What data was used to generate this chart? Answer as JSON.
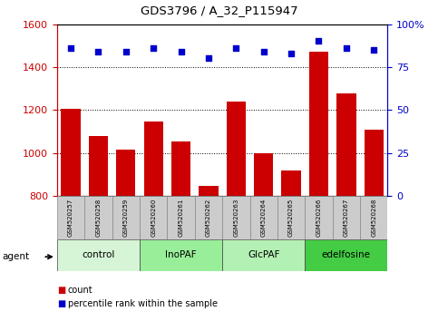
{
  "title": "GDS3796 / A_32_P115947",
  "samples": [
    "GSM520257",
    "GSM520258",
    "GSM520259",
    "GSM520260",
    "GSM520261",
    "GSM520262",
    "GSM520263",
    "GSM520264",
    "GSM520265",
    "GSM520266",
    "GSM520267",
    "GSM520268"
  ],
  "counts": [
    1207,
    1080,
    1015,
    1148,
    1055,
    848,
    1238,
    998,
    920,
    1470,
    1275,
    1108
  ],
  "percentile_ranks": [
    86,
    84,
    84,
    86,
    84,
    80,
    86,
    84,
    83,
    90,
    86,
    85
  ],
  "groups": [
    {
      "label": "control",
      "start": 0,
      "end": 3,
      "color": "#d6f5d6"
    },
    {
      "label": "InoPAF",
      "start": 3,
      "end": 6,
      "color": "#99ee99"
    },
    {
      "label": "GlcPAF",
      "start": 6,
      "end": 9,
      "color": "#b3f0b3"
    },
    {
      "label": "edelfosine",
      "start": 9,
      "end": 12,
      "color": "#44cc44"
    }
  ],
  "ylim_left": [
    800,
    1600
  ],
  "ylim_right": [
    0,
    100
  ],
  "yticks_left": [
    800,
    1000,
    1200,
    1400,
    1600
  ],
  "yticks_right": [
    0,
    25,
    50,
    75,
    100
  ],
  "bar_color": "#cc0000",
  "dot_color": "#0000cc",
  "grid_yticks": [
    1000,
    1200,
    1400
  ],
  "tick_bg_color": "#cccccc",
  "bar_bottom": 800
}
